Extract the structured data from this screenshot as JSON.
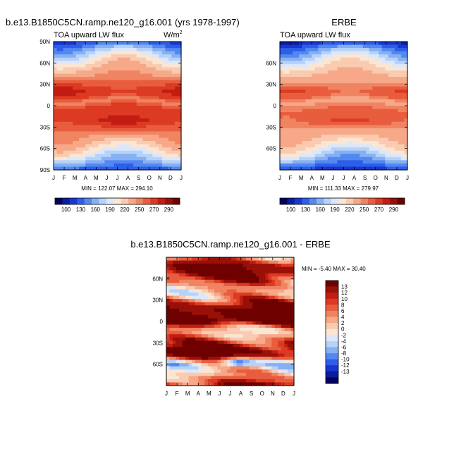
{
  "colors": {
    "lw": [
      "#04025c",
      "#0a1d9c",
      "#1737d0",
      "#2e5ee8",
      "#5288f0",
      "#86b0f4",
      "#b6d2f8",
      "#dce8fa",
      "#fbe6d4",
      "#f9cbb0",
      "#f6a888",
      "#f08462",
      "#e85d3e",
      "#dc3a22",
      "#c21d12",
      "#981008",
      "#6e0000"
    ],
    "diff": [
      "#04025c",
      "#0a1d9c",
      "#1737d0",
      "#2e5ee8",
      "#5288f0",
      "#86b0f4",
      "#b6d2f8",
      "#dce8fa",
      "#fbe6d4",
      "#f9cbb0",
      "#f6a888",
      "#f08462",
      "#e85d3e",
      "#dc3a22",
      "#c21d12",
      "#981008",
      "#6e0000"
    ]
  },
  "chart_data": [
    {
      "type": "heatmap",
      "title": "b.e13.B1850C5CN.ramp.ne120_g16.001 (yrs 1978-1997)",
      "subtitle": "TOA upward LW flux",
      "units_base": "W/m",
      "units_exp": "2",
      "x_ticks": [
        "J",
        "F",
        "M",
        "A",
        "M",
        "J",
        "J",
        "A",
        "S",
        "O",
        "N",
        "D",
        "J"
      ],
      "y_ticks": [
        "90N",
        "60N",
        "30N",
        "0",
        "30S",
        "60S",
        "90S"
      ],
      "y_range": [
        90,
        -90
      ],
      "stats": "MIN = 122.07 MAX = 294.10",
      "min": 122.07,
      "max": 294.1,
      "legend_labels": [
        "100",
        "130",
        "160",
        "190",
        "220",
        "250",
        "270",
        "290"
      ]
    },
    {
      "type": "heatmap",
      "title": "ERBE",
      "subtitle": "TOA upward LW flux",
      "x_ticks": [
        "J",
        "F",
        "M",
        "A",
        "M",
        "J",
        "J",
        "A",
        "S",
        "O",
        "N",
        "D",
        "J"
      ],
      "y_ticks": [
        "60N",
        "30N",
        "0",
        "30S",
        "60S"
      ],
      "y_range": [
        90,
        -90
      ],
      "stats": "MIN = 111.33 MAX = 279.97",
      "min": 111.33,
      "max": 279.97,
      "legend_labels": [
        "100",
        "130",
        "160",
        "190",
        "220",
        "250",
        "270",
        "290"
      ]
    },
    {
      "type": "heatmap",
      "title": "b.e13.B1850C5CN.ramp.ne120_g16.001 - ERBE",
      "x_ticks": [
        "J",
        "F",
        "M",
        "A",
        "M",
        "J",
        "J",
        "A",
        "S",
        "O",
        "N",
        "D",
        "J"
      ],
      "y_ticks": [
        "60N",
        "30N",
        "0",
        "30S",
        "60S"
      ],
      "y_range": [
        90,
        -90
      ],
      "stats": "MIN =  -5.40 MAX =  30.40",
      "min": -5.4,
      "max": 30.4,
      "legend_labels": [
        "13",
        "12",
        "10",
        "8",
        "6",
        "4",
        "2",
        "0",
        "-2",
        "-4",
        "-6",
        "-8",
        "-10",
        "-12",
        "-13"
      ]
    }
  ]
}
